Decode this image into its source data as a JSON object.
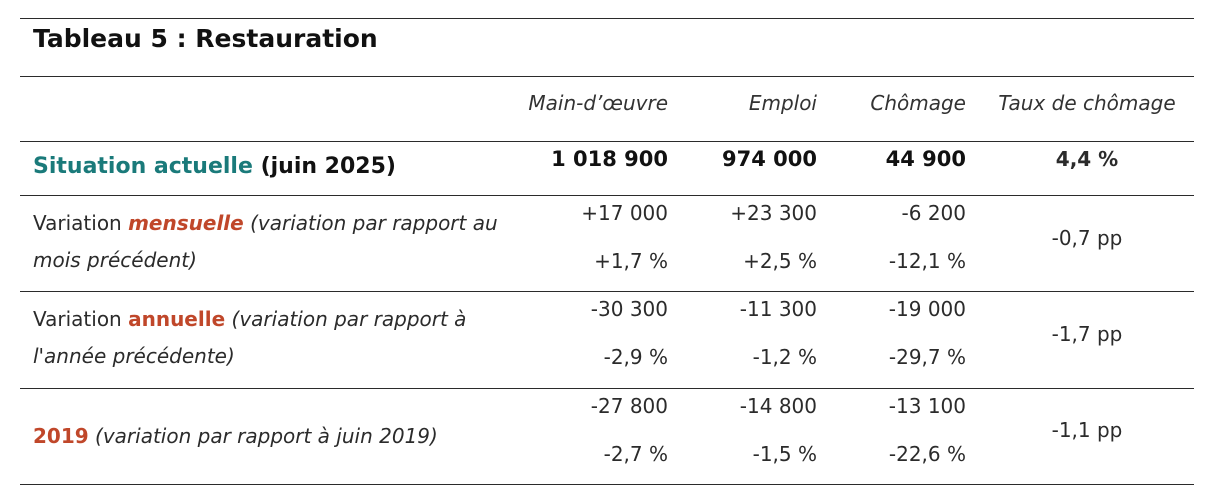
{
  "title": "Tableau 5 : Restauration",
  "headers": {
    "labour": "Main-d’œuvre",
    "employment": "Emploi",
    "unemployment": "Chômage",
    "rate": "Taux de chômage"
  },
  "current": {
    "label_colored": "Situation actuelle",
    "label_rest": " (juin 2025)",
    "labour": "1 018 900",
    "employment": "974 000",
    "unemployment": "44 900",
    "rate": "4,4 %"
  },
  "monthly": {
    "label_prefix": "Variation ",
    "label_colored": "mensuelle",
    "label_rest": " (variation par rapport au mois précédent)",
    "labour_abs": "+17 000",
    "labour_pct": "+1,7 %",
    "employment_abs": "+23 300",
    "employment_pct": "+2,5 %",
    "unemployment_abs": "-6 200",
    "unemployment_pct": "-12,1 %",
    "rate": "-0,7 pp"
  },
  "annual": {
    "label_prefix": "Variation ",
    "label_colored": "annuelle",
    "label_rest": " (variation par rapport à l'année précédente)",
    "labour_abs": "-30 300",
    "labour_pct": "-2,9 %",
    "employment_abs": "-11 300",
    "employment_pct": "-1,2 %",
    "unemployment_abs": "-19 000",
    "unemployment_pct": "-29,7 %",
    "rate": "-1,7 pp"
  },
  "y2019": {
    "label_colored": "2019",
    "label_rest": " (variation par rapport à juin 2019)",
    "labour_abs": "-27 800",
    "labour_pct": "-2,7 %",
    "employment_abs": "-14 800",
    "employment_pct": "-1,5 %",
    "unemployment_abs": "-13 100",
    "unemployment_pct": "-22,6 %",
    "rate": "-1,1 pp"
  },
  "colors": {
    "teal": "#1a7a7a",
    "orange": "#c0472a"
  }
}
